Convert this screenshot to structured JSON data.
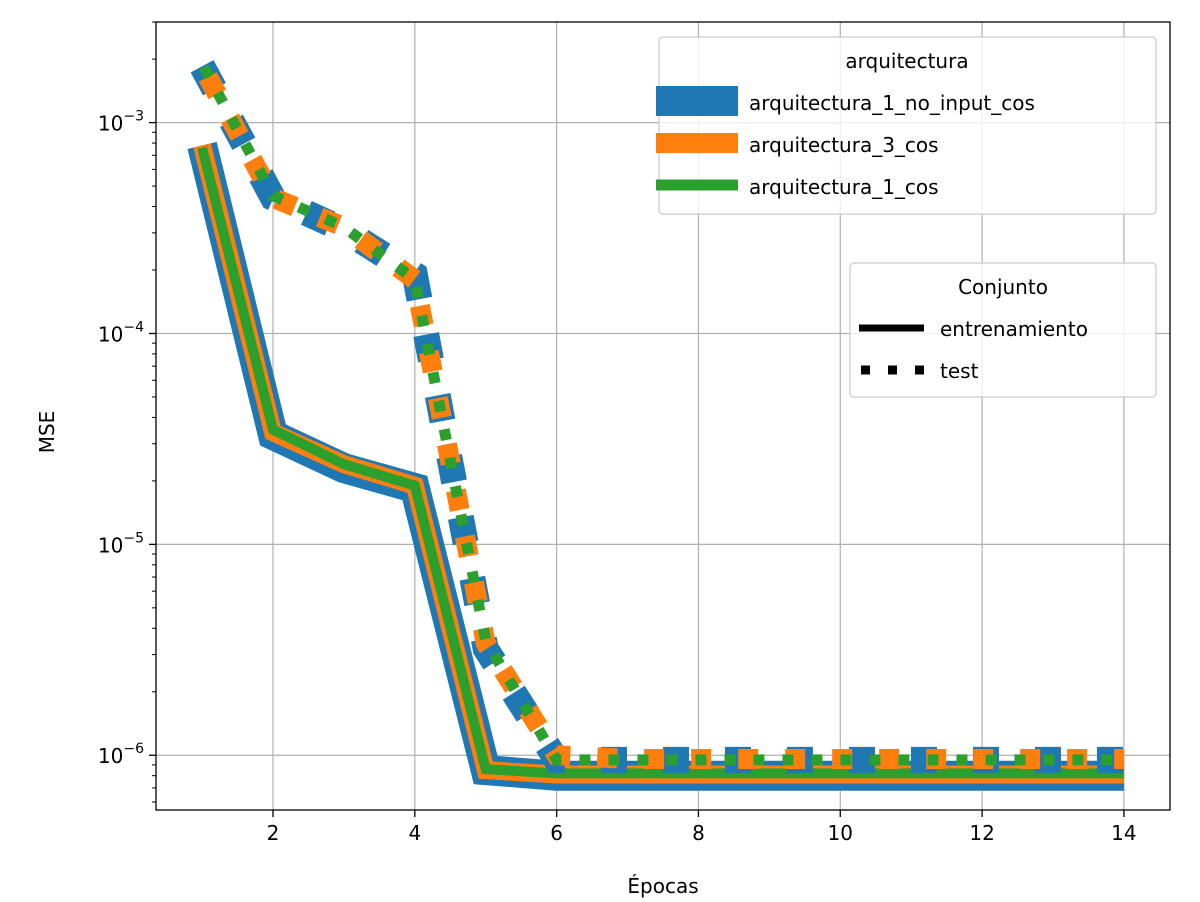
{
  "chart_data": {
    "type": "line",
    "xlabel": "Épocas",
    "ylabel": "MSE",
    "yscale": "log",
    "xlim": [
      0.35,
      14.65
    ],
    "ylim": [
      5.5e-07,
      0.003
    ],
    "x_ticks": [
      2,
      4,
      6,
      8,
      10,
      12,
      14
    ],
    "x_tick_labels": [
      "2",
      "4",
      "6",
      "8",
      "10",
      "12",
      "14"
    ],
    "y_major_ticks": [
      1e-06,
      1e-05,
      0.0001,
      0.001
    ],
    "y_tick_labels": [
      {
        "base": "10",
        "exp": "−6"
      },
      {
        "base": "10",
        "exp": "−5"
      },
      {
        "base": "10",
        "exp": "−4"
      },
      {
        "base": "10",
        "exp": "−3"
      }
    ],
    "grid": true,
    "x": [
      1,
      2,
      3,
      4,
      5,
      6,
      7,
      8,
      9,
      10,
      11,
      12,
      13,
      14
    ],
    "series": [
      {
        "name": "arquitectura_1_no_input_cos",
        "color": "#1f77b4",
        "train": [
          0.00078,
          3.3e-05,
          2.3e-05,
          1.85e-05,
          8.5e-07,
          8e-07,
          8e-07,
          8e-07,
          8e-07,
          8e-07,
          8e-07,
          8e-07,
          8e-07,
          8e-07
        ],
        "test": [
          0.00185,
          0.00044,
          0.00031,
          0.00019,
          3.2e-06,
          9.5e-07,
          9.5e-07,
          9.5e-07,
          9.5e-07,
          9.5e-07,
          9.5e-07,
          9.5e-07,
          9.5e-07,
          9.5e-07
        ]
      },
      {
        "name": "arquitectura_3_cos",
        "color": "#ff7f0e",
        "train": [
          0.00078,
          3.4e-05,
          2.4e-05,
          1.9e-05,
          8.5e-07,
          8.1e-07,
          8.1e-07,
          8.1e-07,
          8.1e-07,
          8.1e-07,
          8.1e-07,
          8.1e-07,
          8.1e-07,
          8.1e-07
        ],
        "test": [
          0.00185,
          0.00044,
          0.00032,
          0.00018,
          3.4e-06,
          1e-06,
          9.6e-07,
          9.6e-07,
          9.6e-07,
          9.6e-07,
          9.6e-07,
          9.6e-07,
          9.6e-07,
          9.6e-07
        ]
      },
      {
        "name": "arquitectura_1_cos",
        "color": "#2ca02c",
        "train": [
          0.00076,
          3.5e-05,
          2.4e-05,
          1.9e-05,
          8.6e-07,
          8.2e-07,
          8.2e-07,
          8.2e-07,
          8.2e-07,
          8.2e-07,
          8.2e-07,
          8.2e-07,
          8.2e-07,
          8.2e-07
        ],
        "test": [
          0.0019,
          0.00045,
          0.00032,
          0.00018,
          3.5e-06,
          9.5e-07,
          9.5e-07,
          9.5e-07,
          9.5e-07,
          9.5e-07,
          9.5e-07,
          9.5e-07,
          9.5e-07,
          9.5e-07
        ]
      }
    ],
    "legends": [
      {
        "title": "arquitectura",
        "placement": "top-right",
        "entries": [
          "arquitectura_1_no_input_cos",
          "arquitectura_3_cos",
          "arquitectura_1_cos"
        ]
      },
      {
        "title": "Conjunto",
        "placement": "center-right",
        "entries": [
          "entrenamiento",
          "test"
        ]
      }
    ]
  }
}
